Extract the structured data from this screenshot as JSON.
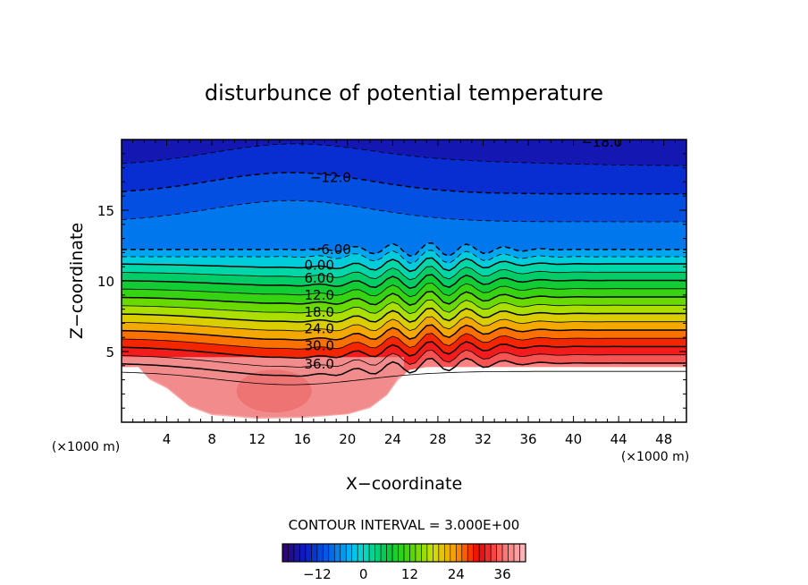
{
  "chart_data": {
    "type": "contour",
    "title": "disturbunce of potential temperature",
    "xlabel": "X−coordinate",
    "ylabel": "Z−coordinate",
    "x_unit_left": "(×1000 m)",
    "x_unit_right": "(×1000 m)",
    "xlim": [
      0,
      50
    ],
    "ylim": [
      0,
      20
    ],
    "x_ticks": [
      4,
      8,
      12,
      16,
      20,
      24,
      28,
      32,
      36,
      40,
      44,
      48
    ],
    "y_ticks": [
      5,
      10,
      15
    ],
    "contour_interval_text": "CONTOUR INTERVAL = 3.000E+00",
    "contour_labels": [
      {
        "text": "−18.0",
        "x": 42.5,
        "z": 19.8
      },
      {
        "text": "−12.0",
        "x": 18.5,
        "z": 17.3
      },
      {
        "text": "−6.00",
        "x": 18.5,
        "z": 12.2
      },
      {
        "text": "0.00",
        "x": 17.5,
        "z": 11.1
      },
      {
        "text": "6.00",
        "x": 17.5,
        "z": 10.2
      },
      {
        "text": "12.0",
        "x": 17.5,
        "z": 9.0
      },
      {
        "text": "18.0",
        "x": 17.5,
        "z": 7.8
      },
      {
        "text": "24.0",
        "x": 17.5,
        "z": 6.6
      },
      {
        "text": "30.0",
        "x": 17.5,
        "z": 5.4
      },
      {
        "text": "36.0",
        "x": 17.5,
        "z": 4.1
      }
    ],
    "contour_levels": [
      -18,
      -15,
      -12,
      -9,
      -6,
      -3,
      0,
      3,
      6,
      9,
      12,
      15,
      18,
      21,
      24,
      27,
      30,
      33,
      36,
      39
    ],
    "colorbar": {
      "min": -21,
      "max": 42,
      "ticks": [
        -12,
        0,
        12,
        24,
        36
      ],
      "tick_labels": [
        "−12",
        "0",
        "12",
        "24",
        "36"
      ]
    }
  }
}
